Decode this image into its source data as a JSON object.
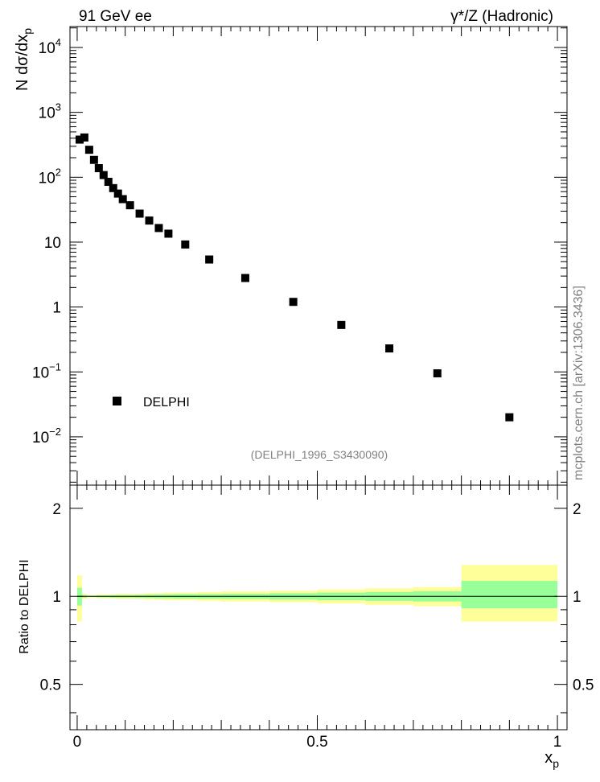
{
  "header": {
    "left": "91 GeV ee",
    "right": "γ*/Z (Hadronic)"
  },
  "watermark": "mcplots.cern.ch [arXiv:1306.3436]",
  "analysis_id": "(DELPHI_1996_S3430090)",
  "colors": {
    "band_outer": "#ffff99",
    "band_inner": "#99ff99",
    "marker": "#000000"
  },
  "chart_data": [
    {
      "type": "scatter",
      "title": "",
      "ylabel": "N dσ/dx_p",
      "log_y": true,
      "xlim": [
        -0.015,
        1.02
      ],
      "ylim": [
        0.0018,
        21000
      ],
      "y_ticks": [
        {
          "value": 10000,
          "base": "10",
          "exp": "4"
        },
        {
          "value": 1000,
          "base": "10",
          "exp": "3"
        },
        {
          "value": 100,
          "base": "10",
          "exp": "2"
        },
        {
          "value": 10,
          "base": "10",
          "exp": ""
        },
        {
          "value": 1,
          "base": "1",
          "exp": ""
        },
        {
          "value": 0.1,
          "base": "10",
          "exp": "−1"
        },
        {
          "value": 0.01,
          "base": "10",
          "exp": "−2"
        }
      ],
      "legend": {
        "entries": [
          "DELPHI"
        ],
        "position": "lower-left"
      },
      "series": [
        {
          "name": "DELPHI",
          "x": [
            0.005,
            0.015,
            0.025,
            0.035,
            0.045,
            0.055,
            0.065,
            0.075,
            0.085,
            0.095,
            0.11,
            0.13,
            0.15,
            0.17,
            0.19,
            0.225,
            0.275,
            0.35,
            0.45,
            0.55,
            0.65,
            0.75,
            0.9
          ],
          "y": [
            380,
            410,
            265,
            185,
            138,
            108,
            85,
            68,
            56,
            46,
            37,
            27.5,
            21.5,
            16.5,
            13.5,
            9.2,
            5.4,
            2.8,
            1.2,
            0.53,
            0.23,
            0.095,
            0.02
          ]
        }
      ]
    },
    {
      "type": "area",
      "title": "",
      "xlabel": "x_p",
      "ylabel": "Ratio to DELPHI",
      "log_y": true,
      "xlim": [
        -0.015,
        1.02
      ],
      "ylim": [
        0.35,
        2.4
      ],
      "x_ticks": [
        "0",
        "0.5",
        "1"
      ],
      "y_ticks": [
        "2",
        "1",
        "0.5"
      ],
      "bins": [
        0,
        0.01,
        0.02,
        0.03,
        0.04,
        0.05,
        0.06,
        0.07,
        0.08,
        0.09,
        0.1,
        0.12,
        0.14,
        0.16,
        0.18,
        0.2,
        0.25,
        0.3,
        0.4,
        0.5,
        0.6,
        0.7,
        0.8,
        1.0
      ],
      "series": [
        {
          "name": "",
          "low": [
            0.82,
            0.98,
            0.99,
            0.99,
            0.985,
            0.985,
            0.985,
            0.985,
            0.98,
            0.98,
            0.98,
            0.98,
            0.975,
            0.975,
            0.97,
            0.97,
            0.965,
            0.96,
            0.955,
            0.945,
            0.935,
            0.925,
            0.82
          ],
          "high": [
            1.18,
            1.02,
            1.01,
            1.01,
            1.015,
            1.015,
            1.015,
            1.015,
            1.02,
            1.02,
            1.02,
            1.02,
            1.025,
            1.025,
            1.03,
            1.03,
            1.035,
            1.04,
            1.045,
            1.055,
            1.065,
            1.075,
            1.28
          ]
        },
        {
          "name": "",
          "low": [
            0.93,
            0.99,
            0.995,
            0.995,
            0.992,
            0.992,
            0.992,
            0.99,
            0.99,
            0.99,
            0.99,
            0.988,
            0.987,
            0.985,
            0.985,
            0.983,
            0.982,
            0.98,
            0.975,
            0.97,
            0.965,
            0.96,
            0.91
          ],
          "high": [
            1.07,
            1.01,
            1.005,
            1.005,
            1.008,
            1.008,
            1.008,
            1.01,
            1.01,
            1.01,
            1.01,
            1.012,
            1.013,
            1.015,
            1.015,
            1.017,
            1.018,
            1.02,
            1.025,
            1.03,
            1.035,
            1.04,
            1.13
          ]
        }
      ]
    }
  ]
}
